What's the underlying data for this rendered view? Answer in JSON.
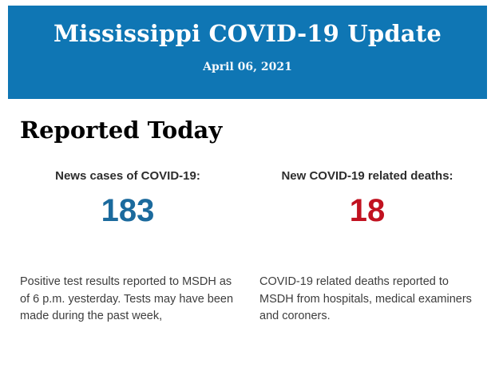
{
  "banner": {
    "title": "Mississippi COVID-19 Update",
    "date": "April 06, 2021",
    "background_color": "#0f76b4",
    "text_color": "#ffffff"
  },
  "main": {
    "heading": "Reported Today",
    "stats": [
      {
        "label": "News cases of COVID-19:",
        "value": "183",
        "value_color": "#1b6a9d",
        "lines": [
          "Positive test results reported to MSDH as",
          "of 6 p.m. yesterday. Tests may have been",
          "made during the past week,"
        ]
      },
      {
        "label": "New COVID-19 related deaths:",
        "value": "18",
        "value_color": "#c11220",
        "lines": [
          "COVID-19 related deaths reported to",
          "MSDH from hospitals, medical examiners",
          "and coroners."
        ]
      }
    ]
  }
}
